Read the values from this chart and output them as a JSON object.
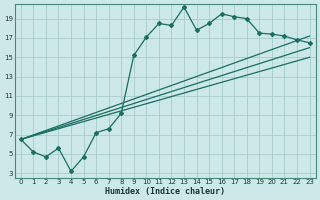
{
  "xlabel": "Humidex (Indice chaleur)",
  "bg_color": "#cce8e8",
  "grid_color": "#aacccc",
  "line_color": "#1a6e62",
  "xlim": [
    -0.5,
    23.5
  ],
  "ylim": [
    2.5,
    20.5
  ],
  "xticks": [
    0,
    1,
    2,
    3,
    4,
    5,
    6,
    7,
    8,
    9,
    10,
    11,
    12,
    13,
    14,
    15,
    16,
    17,
    18,
    19,
    20,
    21,
    22,
    23
  ],
  "yticks": [
    3,
    5,
    7,
    9,
    11,
    13,
    15,
    17,
    19
  ],
  "line_jagged_x": [
    0,
    1,
    2,
    3,
    4,
    5,
    6,
    7,
    8,
    9,
    10,
    11,
    12,
    13,
    14,
    15,
    16,
    17,
    18,
    19,
    20,
    21,
    22,
    23
  ],
  "line_jagged_y": [
    6.5,
    5.2,
    4.7,
    5.6,
    3.2,
    4.7,
    7.2,
    7.6,
    9.2,
    15.2,
    17.1,
    18.5,
    18.3,
    20.2,
    17.8,
    18.5,
    19.5,
    19.2,
    19.0,
    17.5,
    17.4,
    17.2,
    16.8,
    16.5
  ],
  "line2_x": [
    0,
    23
  ],
  "line2_y": [
    6.5,
    17.2
  ],
  "line3_x": [
    0,
    23
  ],
  "line3_y": [
    6.5,
    16.0
  ],
  "line4_x": [
    0,
    23
  ],
  "line4_y": [
    6.5,
    15.0
  ]
}
